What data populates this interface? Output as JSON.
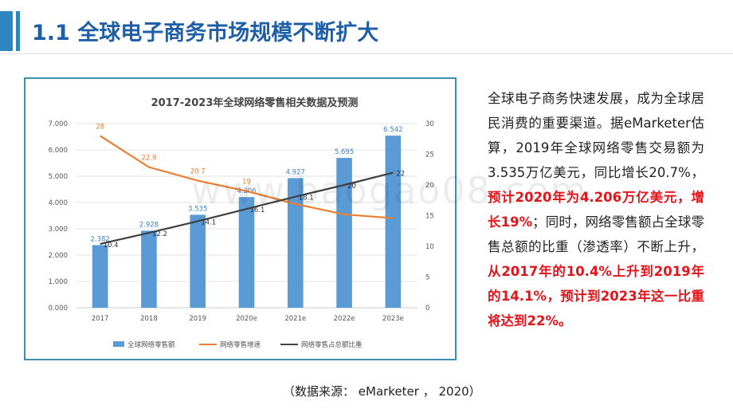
{
  "header": {
    "title": "1.1 全球电子商务市场规模不断扩大"
  },
  "body": {
    "p1": "全球电子商务快速发展，成为全球居民消费的重要渠道。据eMarketer估算，2019年全球网络零售交易额为3.535万亿美元，同比增长20.7%，",
    "p2_highlight": "预计2020年为4.206万亿美元，增长19%",
    "p3": "；同时，网络零售额占全球零售总额的比重（渗透率）不断上升，",
    "p4_highlight": "从2017年的10.4%上升到2019年的14.1%，预计到2023年这一比重将达到22%。"
  },
  "source": "（数据来源： eMarketer ， 2020）",
  "watermark": "www.baogao08.com",
  "colors": {
    "title": "#1f5fa8",
    "bar": "#5b9bd5",
    "growth_line": "#ed7d31",
    "share_line": "#404040",
    "highlight": "#e4141b"
  },
  "chart_data": {
    "type": "bar",
    "title": "2017-2023年全球网络零售相关数据及预测",
    "categories": [
      "2017",
      "2018",
      "2019",
      "2020e",
      "2021e",
      "2022e",
      "2023e"
    ],
    "ylim_left": [
      0,
      7
    ],
    "ylim_right": [
      0,
      30
    ],
    "left_ticks": [
      "0.000",
      "1.000",
      "2.000",
      "3.000",
      "4.000",
      "5.000",
      "6.000",
      "7.000"
    ],
    "right_ticks": [
      "0",
      "5",
      "10",
      "15",
      "20",
      "25",
      "30"
    ],
    "legend_position": "bottom",
    "series": [
      {
        "name": "全球网络零售额",
        "type": "bar",
        "axis": "left",
        "values": [
          2.382,
          2.928,
          3.535,
          4.206,
          4.927,
          5.695,
          6.542
        ],
        "labels": [
          "2.382",
          "2.928",
          "3.535",
          "4.206",
          "4.927",
          "5.695",
          "6.542"
        ]
      },
      {
        "name": "网络零售增速",
        "type": "line",
        "axis": "right",
        "values": [
          28,
          22.9,
          20.7,
          19,
          16.9,
          15.2,
          14.6
        ],
        "labels": [
          "28",
          "22.9",
          "20.7",
          "19",
          "",
          "",
          ""
        ]
      },
      {
        "name": "网络零售占总额比重",
        "type": "line",
        "axis": "right",
        "values": [
          10.4,
          12.2,
          14.1,
          16.1,
          18.1,
          20,
          22
        ],
        "labels": [
          "10.4",
          "12.2",
          "14.1",
          "16.1",
          "18.1",
          "20",
          "22"
        ]
      }
    ]
  }
}
